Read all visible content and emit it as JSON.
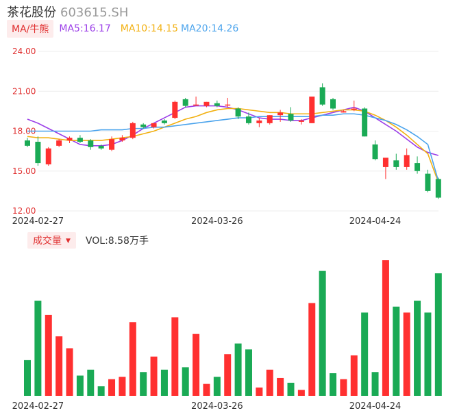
{
  "header": {
    "name": "茶花股份",
    "code": "603615.SH"
  },
  "ma_legend": {
    "tag": "MA/牛熊",
    "ma5": "MA5:16.17",
    "ma10": "MA10:14.15",
    "ma20": "MA20:14.26"
  },
  "volume_legend": {
    "tag": "成交量",
    "value": "VOL:8.58万手"
  },
  "colors": {
    "up": "#ff3030",
    "down": "#1aaa55",
    "ma5": "#9b3ee8",
    "ma10": "#f2b010",
    "ma20": "#4aa3ec",
    "grid": "#eeeeee"
  },
  "chart_data": {
    "type": "candlestick",
    "y_ticks": [
      "24.00",
      "21.00",
      "18.00",
      "15.00",
      "12.00"
    ],
    "ylim": [
      12,
      24
    ],
    "x_tick_labels": [
      "2024-02-27",
      "2024-03-26",
      "2024-04-24"
    ],
    "x_tick_indices": [
      1,
      18,
      33
    ],
    "candles": [
      {
        "o": 17.3,
        "h": 17.5,
        "l": 16.8,
        "c": 16.9
      },
      {
        "o": 17.2,
        "h": 17.6,
        "l": 15.4,
        "c": 15.6
      },
      {
        "o": 15.5,
        "h": 16.8,
        "l": 15.4,
        "c": 16.7
      },
      {
        "o": 16.9,
        "h": 17.4,
        "l": 16.8,
        "c": 17.3
      },
      {
        "o": 17.3,
        "h": 17.6,
        "l": 17.1,
        "c": 17.5
      },
      {
        "o": 17.5,
        "h": 17.7,
        "l": 17.1,
        "c": 17.2
      },
      {
        "o": 17.3,
        "h": 17.4,
        "l": 16.6,
        "c": 16.8
      },
      {
        "o": 16.9,
        "h": 17.0,
        "l": 16.6,
        "c": 16.7
      },
      {
        "o": 16.6,
        "h": 17.6,
        "l": 16.5,
        "c": 17.4
      },
      {
        "o": 17.3,
        "h": 17.7,
        "l": 17.2,
        "c": 17.5
      },
      {
        "o": 17.5,
        "h": 18.7,
        "l": 17.4,
        "c": 18.6
      },
      {
        "o": 18.5,
        "h": 18.6,
        "l": 18.2,
        "c": 18.3
      },
      {
        "o": 18.3,
        "h": 18.6,
        "l": 18.2,
        "c": 18.6
      },
      {
        "o": 18.8,
        "h": 18.9,
        "l": 18.5,
        "c": 18.6
      },
      {
        "o": 19.0,
        "h": 20.3,
        "l": 18.9,
        "c": 20.2
      },
      {
        "o": 20.4,
        "h": 20.5,
        "l": 19.8,
        "c": 19.9
      },
      {
        "o": 20.0,
        "h": 20.6,
        "l": 19.9,
        "c": 20.0
      },
      {
        "o": 19.9,
        "h": 20.2,
        "l": 19.8,
        "c": 20.2
      },
      {
        "o": 20.1,
        "h": 20.3,
        "l": 19.8,
        "c": 19.9
      },
      {
        "o": 20.0,
        "h": 20.5,
        "l": 19.8,
        "c": 20.0
      },
      {
        "o": 19.7,
        "h": 19.8,
        "l": 18.9,
        "c": 19.1
      },
      {
        "o": 19.1,
        "h": 19.4,
        "l": 18.5,
        "c": 18.6
      },
      {
        "o": 18.6,
        "h": 19.0,
        "l": 18.3,
        "c": 18.8
      },
      {
        "o": 18.6,
        "h": 19.2,
        "l": 18.5,
        "c": 19.2
      },
      {
        "o": 19.2,
        "h": 19.6,
        "l": 18.7,
        "c": 19.4
      },
      {
        "o": 19.3,
        "h": 19.8,
        "l": 18.7,
        "c": 18.8
      },
      {
        "o": 18.7,
        "h": 18.9,
        "l": 18.5,
        "c": 18.8
      },
      {
        "o": 18.6,
        "h": 20.6,
        "l": 18.6,
        "c": 20.6
      },
      {
        "o": 21.3,
        "h": 21.6,
        "l": 19.9,
        "c": 20.0
      },
      {
        "o": 20.4,
        "h": 20.5,
        "l": 19.6,
        "c": 19.7
      },
      {
        "o": 19.4,
        "h": 19.6,
        "l": 19.4,
        "c": 19.5
      },
      {
        "o": 19.6,
        "h": 20.3,
        "l": 19.5,
        "c": 19.7
      },
      {
        "o": 19.7,
        "h": 19.8,
        "l": 17.6,
        "c": 17.6
      },
      {
        "o": 17.0,
        "h": 17.3,
        "l": 15.8,
        "c": 15.9
      },
      {
        "o": 15.3,
        "h": 15.9,
        "l": 14.4,
        "c": 16.0
      },
      {
        "o": 15.8,
        "h": 16.3,
        "l": 15.1,
        "c": 15.3
      },
      {
        "o": 15.3,
        "h": 16.7,
        "l": 15.1,
        "c": 16.2
      },
      {
        "o": 15.6,
        "h": 16.1,
        "l": 14.8,
        "c": 15.0
      },
      {
        "o": 14.8,
        "h": 15.1,
        "l": 13.4,
        "c": 13.5
      },
      {
        "o": 14.4,
        "h": 14.5,
        "l": 12.9,
        "c": 13.0
      }
    ],
    "ma5": [
      18.9,
      18.6,
      18.2,
      17.8,
      17.4,
      17.0,
      16.9,
      16.9,
      17.0,
      17.3,
      17.7,
      18.2,
      18.6,
      19.0,
      19.4,
      19.8,
      19.9,
      19.9,
      19.9,
      19.8,
      19.6,
      19.3,
      19.0,
      18.9,
      18.9,
      18.8,
      18.8,
      19.0,
      19.2,
      19.4,
      19.6,
      19.8,
      19.5,
      19.0,
      18.5,
      18.0,
      17.4,
      16.8,
      16.4,
      16.17
    ],
    "ma10": [
      17.6,
      17.5,
      17.5,
      17.4,
      17.3,
      17.3,
      17.3,
      17.3,
      17.4,
      17.5,
      17.6,
      17.8,
      18.0,
      18.3,
      18.6,
      18.9,
      19.1,
      19.4,
      19.6,
      19.7,
      19.7,
      19.6,
      19.5,
      19.4,
      19.4,
      19.3,
      19.3,
      19.3,
      19.4,
      19.5,
      19.6,
      19.6,
      19.5,
      19.2,
      18.8,
      18.3,
      17.7,
      17.0,
      16.3,
      14.15
    ],
    "ma20": [
      18.0,
      18.0,
      18.0,
      18.0,
      18.0,
      18.0,
      18.0,
      18.1,
      18.1,
      18.1,
      18.2,
      18.2,
      18.3,
      18.3,
      18.4,
      18.5,
      18.6,
      18.7,
      18.8,
      18.9,
      19.0,
      19.0,
      19.1,
      19.1,
      19.1,
      19.1,
      19.1,
      19.1,
      19.2,
      19.2,
      19.3,
      19.3,
      19.2,
      19.0,
      18.8,
      18.5,
      18.1,
      17.6,
      17.0,
      14.26
    ],
    "volumes": [
      30,
      80,
      68,
      50,
      40,
      17,
      22,
      8,
      14,
      16,
      62,
      20,
      33,
      22,
      66,
      24,
      52,
      10,
      16,
      35,
      44,
      39,
      7,
      22,
      15,
      11,
      5,
      78,
      105,
      19,
      14,
      34,
      70,
      20,
      114,
      75,
      70,
      80,
      70,
      103
    ]
  }
}
